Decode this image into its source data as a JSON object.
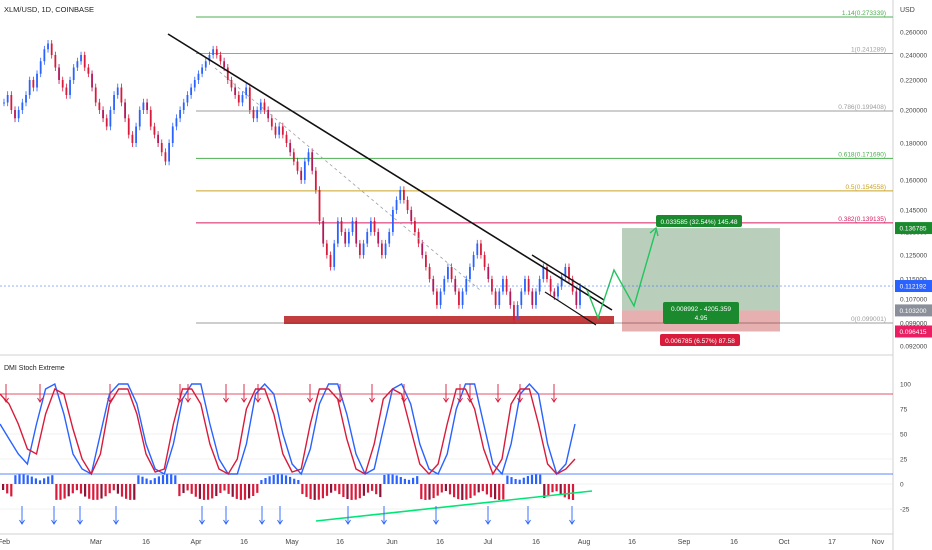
{
  "header": {
    "symbol_line": "XLM/USD, 1D, COINBASE",
    "currency": "USD"
  },
  "colors": {
    "up": "#2962ff",
    "down": "#d81b3a",
    "mid_down": "#b2185a",
    "fib_green": "#4caf50",
    "fib_gold": "#c9a227",
    "fib_pink": "#d81b60",
    "fib_gray": "#9e9e9e",
    "trend": "#ffffff",
    "forecast": "#22c55e",
    "profit_zone": "#1b5e20",
    "loss_zone": "#b71c1c",
    "price_badge": "#2962ff",
    "stop_badge": "#e91e63",
    "divergence": "#00e676"
  },
  "chart_data": [
    {
      "type": "candlestick",
      "title": "XLM/USD, 1D, COINBASE",
      "x_ticks": [
        "Feb",
        "Mar",
        "16",
        "Apr",
        "16",
        "May",
        "16",
        "Jun",
        "16",
        "Jul",
        "16",
        "Aug",
        "16",
        "Sep",
        "16",
        "Oct",
        "17",
        "Nov"
      ],
      "y_ticks": [
        "0.260000",
        "0.240000",
        "0.220000",
        "0.200000",
        "0.180000",
        "0.160000",
        "0.145000",
        "0.135000",
        "0.125000",
        "0.115000",
        "0.107000",
        "0.099000",
        "0.092000"
      ],
      "ylim": [
        0.09,
        0.28
      ],
      "approx_daily_closes": [
        0.205,
        0.21,
        0.2,
        0.195,
        0.2,
        0.205,
        0.21,
        0.22,
        0.215,
        0.225,
        0.235,
        0.245,
        0.25,
        0.24,
        0.23,
        0.22,
        0.215,
        0.21,
        0.22,
        0.23,
        0.235,
        0.24,
        0.23,
        0.225,
        0.215,
        0.205,
        0.2,
        0.195,
        0.19,
        0.2,
        0.21,
        0.215,
        0.205,
        0.195,
        0.185,
        0.18,
        0.19,
        0.2,
        0.205,
        0.2,
        0.19,
        0.185,
        0.18,
        0.175,
        0.17,
        0.18,
        0.19,
        0.195,
        0.2,
        0.205,
        0.21,
        0.215,
        0.22,
        0.225,
        0.23,
        0.235,
        0.24,
        0.245,
        0.24,
        0.235,
        0.23,
        0.22,
        0.215,
        0.21,
        0.205,
        0.21,
        0.215,
        0.2,
        0.195,
        0.2,
        0.205,
        0.2,
        0.195,
        0.19,
        0.185,
        0.19,
        0.185,
        0.18,
        0.175,
        0.17,
        0.165,
        0.16,
        0.17,
        0.175,
        0.165,
        0.155,
        0.14,
        0.13,
        0.125,
        0.12,
        0.13,
        0.14,
        0.135,
        0.13,
        0.135,
        0.14,
        0.13,
        0.125,
        0.13,
        0.135,
        0.14,
        0.135,
        0.13,
        0.125,
        0.13,
        0.135,
        0.145,
        0.15,
        0.155,
        0.15,
        0.145,
        0.14,
        0.135,
        0.13,
        0.125,
        0.12,
        0.115,
        0.11,
        0.105,
        0.11,
        0.115,
        0.12,
        0.115,
        0.11,
        0.105,
        0.11,
        0.115,
        0.12,
        0.125,
        0.13,
        0.125,
        0.12,
        0.115,
        0.11,
        0.105,
        0.11,
        0.115,
        0.11,
        0.105,
        0.1,
        0.105,
        0.11,
        0.115,
        0.11,
        0.105,
        0.11,
        0.115,
        0.12,
        0.115,
        0.11,
        0.108,
        0.112,
        0.116,
        0.12,
        0.115,
        0.11,
        0.105,
        0.112
      ],
      "fib_levels": [
        {
          "label": "1.14(0.273339)",
          "value": 0.273339,
          "color": "green"
        },
        {
          "label": "1(0.241289)",
          "value": 0.241289,
          "color": "gray"
        },
        {
          "label": "0.786(0.199408)",
          "value": 0.199408,
          "color": "gray"
        },
        {
          "label": "0.618(0.171690)",
          "value": 0.17169,
          "color": "green"
        },
        {
          "label": "0.5(0.154558)",
          "value": 0.154558,
          "color": "gold"
        },
        {
          "label": "0.382(0.139135)",
          "value": 0.139135,
          "color": "pink"
        },
        {
          "label": "0(0.099001)",
          "value": 0.099001,
          "color": "gray"
        }
      ],
      "price_labels": [
        {
          "label": "0.136785",
          "value": 0.136785,
          "style": "green"
        },
        {
          "label": "0.112192",
          "value": 0.112192,
          "style": "blue"
        },
        {
          "label": "0.103200",
          "value": 0.1032,
          "style": "gray"
        },
        {
          "label": "0.096415",
          "value": 0.096415,
          "style": "red"
        }
      ],
      "position_tool": {
        "target_text": "0.033585 (32.54%) 145.48",
        "entry_text": [
          "0.008992 - 4205.359",
          "4.95"
        ],
        "stop_text": "0.006785 (6.57%) 87.58",
        "entry": 0.1032,
        "target": 0.136785,
        "stop": 0.096415
      }
    },
    {
      "type": "line",
      "title": "DMI Stoch Extreme",
      "y_ticks": [
        "100",
        "75",
        "50",
        "25",
        "0",
        "-25"
      ],
      "ylim": [
        -40,
        110
      ],
      "reference_levels": [
        90,
        10
      ],
      "series": [
        {
          "role": "blue-line",
          "approx_values": [
            60,
            45,
            30,
            20,
            60,
            95,
            100,
            70,
            30,
            15,
            10,
            50,
            90,
            100,
            100,
            80,
            40,
            15,
            10,
            40,
            85,
            100,
            100,
            60,
            25,
            10,
            10,
            40,
            90,
            100,
            90,
            50,
            20,
            10,
            35,
            80,
            100,
            100,
            70,
            30,
            10,
            15,
            55,
            95,
            100,
            80,
            40,
            15,
            10,
            30,
            75,
            100,
            100,
            60,
            20,
            10,
            40,
            90,
            100,
            90,
            40,
            10,
            20,
            60
          ]
        },
        {
          "role": "red-line",
          "approx_values": [
            90,
            80,
            60,
            35,
            30,
            70,
            95,
            90,
            55,
            25,
            10,
            30,
            80,
            95,
            95,
            70,
            30,
            12,
            15,
            60,
            95,
            95,
            80,
            40,
            15,
            10,
            25,
            75,
            95,
            95,
            70,
            30,
            12,
            15,
            60,
            95,
            95,
            85,
            45,
            15,
            10,
            40,
            85,
            95,
            90,
            55,
            20,
            10,
            20,
            60,
            95,
            95,
            75,
            35,
            10,
            25,
            80,
            95,
            95,
            60,
            20,
            10,
            15,
            25
          ]
        }
      ]
    }
  ]
}
